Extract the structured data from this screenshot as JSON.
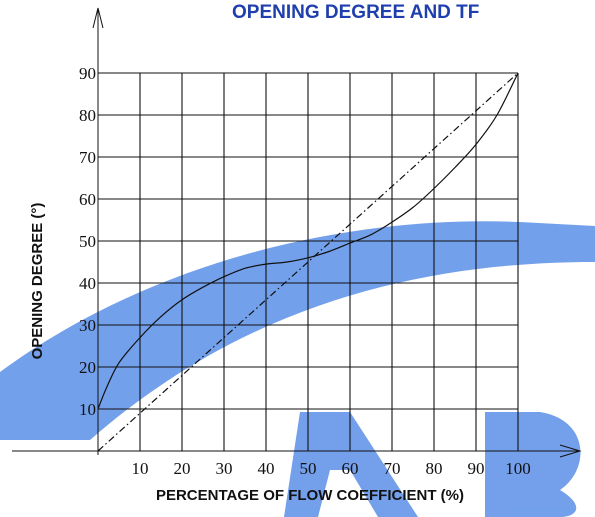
{
  "chart_data": {
    "type": "line",
    "title": "OPENING DEGREE AND TF",
    "xlabel": "PERCENTAGE OF FLOW COEFFICIENT (%)",
    "ylabel": "OPENING DEGREE (°)",
    "xlim": [
      0,
      100
    ],
    "ylim": [
      0,
      90
    ],
    "x_ticks": [
      "10",
      "20",
      "30",
      "40",
      "50",
      "60",
      "70",
      "80",
      "90",
      "100"
    ],
    "y_ticks": [
      "10",
      "20",
      "30",
      "40",
      "50",
      "60",
      "70",
      "80",
      "90"
    ],
    "grid": true,
    "series": [
      {
        "style": "solid",
        "x": [
          0,
          2,
          5,
          10,
          15,
          20,
          25,
          30,
          35,
          40,
          45,
          50,
          55,
          60,
          65,
          70,
          75,
          80,
          85,
          90,
          95,
          100
        ],
        "y": [
          10,
          15,
          21,
          27,
          32,
          36,
          39,
          41.5,
          43.5,
          44.5,
          45,
          46,
          47.5,
          49.5,
          51.5,
          54.5,
          58,
          62.5,
          67.5,
          73,
          80,
          90
        ]
      },
      {
        "style": "dash-dot",
        "x": [
          0,
          100
        ],
        "y": [
          0,
          90
        ]
      }
    ],
    "watermark_color": "#5b8fe8"
  }
}
